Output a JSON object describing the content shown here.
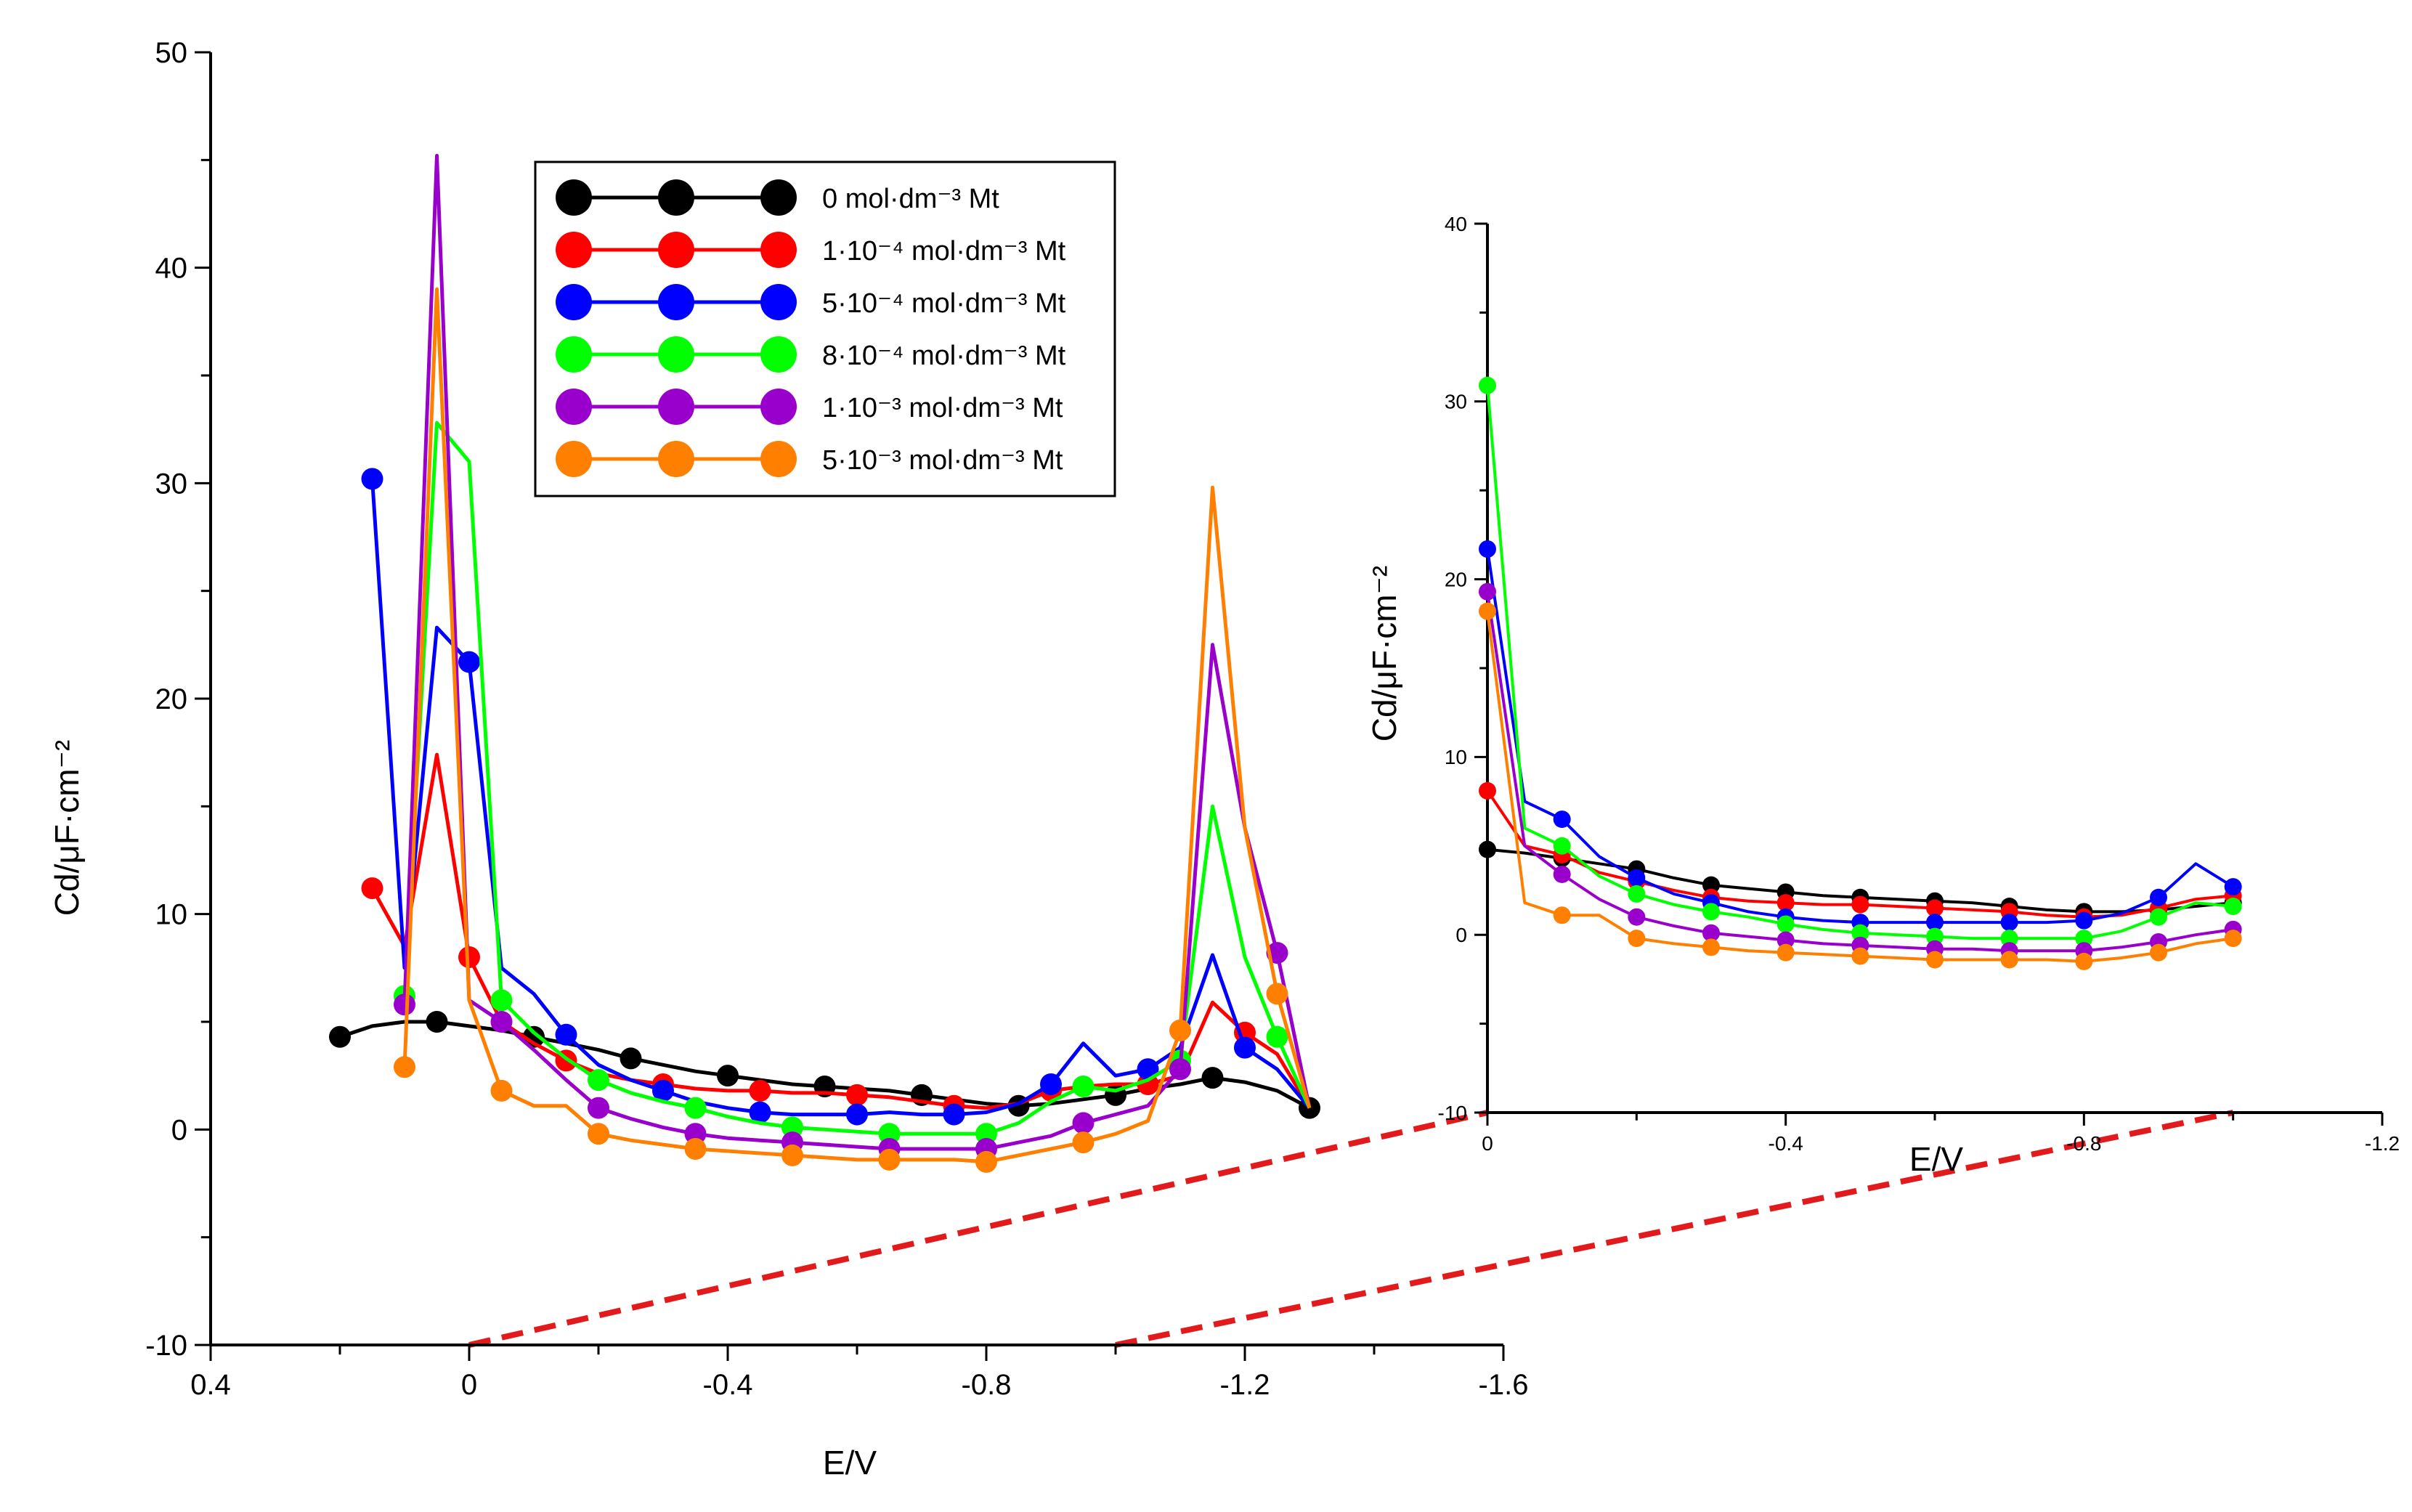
{
  "colors": {
    "0": "#000000",
    "1e-4": "#ff0000",
    "5e-4": "#0000ff",
    "8e-4": "#00ff00",
    "1e-3": "#9900cc",
    "5e-3": "#ff7f00",
    "connector": "#e31a1c"
  },
  "legend": [
    {
      "key": "0",
      "text": "0 mol·dm⁻³ Mt"
    },
    {
      "key": "1e-4",
      "text": "1·10⁻⁴ mol·dm⁻³ Mt"
    },
    {
      "key": "5e-4",
      "text": "5·10⁻⁴ mol·dm⁻³ Mt"
    },
    {
      "key": "8e-4",
      "text": "8·10⁻⁴ mol·dm⁻³ Mt"
    },
    {
      "key": "1e-3",
      "text": "1·10⁻³ mol·dm⁻³ Mt"
    },
    {
      "key": "5e-3",
      "text": "5·10⁻³ mol·dm⁻³ Mt"
    }
  ],
  "chart_data": [
    {
      "type": "line",
      "id": "main",
      "xlabel": "E/V",
      "ylabel": "Cd/μF·cm⁻²",
      "xlim": [
        0.4,
        -1.6
      ],
      "ylim": [
        -10,
        50
      ],
      "xticks": [
        0.4,
        0,
        -0.4,
        -0.8,
        -1.2,
        -1.6
      ],
      "xtick_labels": [
        "0.4",
        "0",
        "-0.4",
        "-0.8",
        "-1.2",
        "-1.6"
      ],
      "yticks": [
        -10,
        0,
        10,
        20,
        30,
        40,
        50
      ],
      "ytick_labels": [
        "-10",
        "0",
        "10",
        "20",
        "30",
        "40",
        "50"
      ],
      "legend_position": "top-center",
      "series": [
        {
          "key": "0",
          "name": "0 mol·dm⁻³ Mt",
          "x": [
            0.2,
            0.15,
            0.1,
            0.05,
            0,
            -0.05,
            -0.1,
            -0.15,
            -0.2,
            -0.25,
            -0.3,
            -0.35,
            -0.4,
            -0.45,
            -0.5,
            -0.55,
            -0.6,
            -0.65,
            -0.7,
            -0.75,
            -0.8,
            -0.85,
            -0.9,
            -0.95,
            -1.0,
            -1.05,
            -1.1,
            -1.15,
            -1.2,
            -1.25,
            -1.3
          ],
          "y": [
            4.3,
            4.8,
            5.0,
            5.0,
            4.8,
            4.6,
            4.3,
            4.0,
            3.7,
            3.3,
            3.0,
            2.7,
            2.5,
            2.3,
            2.1,
            2.0,
            1.9,
            1.8,
            1.6,
            1.4,
            1.2,
            1.1,
            1.2,
            1.4,
            1.6,
            1.9,
            2.1,
            2.4,
            2.2,
            1.8,
            1.0
          ],
          "markers": [
            0.2,
            0.05,
            -0.1,
            -0.25,
            -0.4,
            -0.55,
            -0.7,
            -0.85,
            -1.0,
            -1.15,
            -1.3
          ]
        },
        {
          "key": "1e-4",
          "name": "1·10⁻⁴ mol·dm⁻³ Mt",
          "x": [
            0.15,
            0.1,
            0.05,
            0,
            -0.05,
            -0.1,
            -0.15,
            -0.2,
            -0.25,
            -0.3,
            -0.35,
            -0.4,
            -0.45,
            -0.5,
            -0.55,
            -0.6,
            -0.65,
            -0.7,
            -0.75,
            -0.8,
            -0.85,
            -0.9,
            -0.95,
            -1.0,
            -1.05,
            -1.1,
            -1.15,
            -1.2,
            -1.25,
            -1.3
          ],
          "y": [
            11.2,
            8.5,
            17.4,
            8.0,
            5.0,
            4.0,
            3.2,
            2.6,
            2.3,
            2.1,
            1.9,
            1.8,
            1.8,
            1.7,
            1.7,
            1.6,
            1.5,
            1.3,
            1.1,
            1.0,
            1.2,
            1.8,
            2.0,
            2.1,
            2.1,
            2.5,
            5.9,
            4.5,
            3.5,
            1.0
          ],
          "markers": [
            0.15,
            0.0,
            -0.15,
            -0.3,
            -0.45,
            -0.6,
            -0.75,
            -0.9,
            -1.05,
            -1.2
          ]
        },
        {
          "key": "5e-4",
          "name": "5·10⁻⁴ mol·dm⁻³ Mt",
          "x": [
            0.15,
            0.1,
            0.05,
            0,
            -0.05,
            -0.1,
            -0.15,
            -0.2,
            -0.25,
            -0.3,
            -0.35,
            -0.4,
            -0.45,
            -0.5,
            -0.55,
            -0.6,
            -0.65,
            -0.7,
            -0.75,
            -0.8,
            -0.85,
            -0.9,
            -0.95,
            -1.0,
            -1.05,
            -1.1,
            -1.15,
            -1.2,
            -1.25,
            -1.3
          ],
          "y": [
            30.2,
            7.5,
            23.3,
            21.7,
            7.5,
            6.3,
            4.4,
            3.0,
            2.3,
            1.8,
            1.3,
            1.0,
            0.8,
            0.7,
            0.7,
            0.7,
            0.8,
            0.7,
            0.7,
            0.8,
            1.2,
            2.1,
            4.0,
            2.5,
            2.8,
            3.8,
            8.1,
            3.8,
            2.8,
            1.0
          ],
          "markers": [
            0.15,
            -0.0,
            -0.15,
            -0.3,
            -0.45,
            -0.6,
            -0.75,
            -0.9,
            -1.05,
            -1.2
          ]
        },
        {
          "key": "8e-4",
          "name": "8·10⁻⁴ mol·dm⁻³ Mt",
          "x": [
            0.1,
            0.05,
            0,
            -0.05,
            -0.1,
            -0.15,
            -0.2,
            -0.25,
            -0.3,
            -0.35,
            -0.4,
            -0.45,
            -0.5,
            -0.55,
            -0.6,
            -0.65,
            -0.7,
            -0.75,
            -0.8,
            -0.85,
            -0.9,
            -0.95,
            -1.0,
            -1.05,
            -1.1,
            -1.15,
            -1.2,
            -1.25,
            -1.3
          ],
          "y": [
            6.2,
            32.8,
            31.0,
            6.0,
            4.5,
            3.3,
            2.3,
            1.7,
            1.3,
            1.0,
            0.6,
            0.3,
            0.1,
            0.0,
            -0.1,
            -0.2,
            -0.2,
            -0.2,
            -0.2,
            0.3,
            1.3,
            2.0,
            1.8,
            2.3,
            3.2,
            15.0,
            8.0,
            4.3,
            1.0
          ],
          "markers": [
            0.1,
            -0.05,
            -0.2,
            -0.35,
            -0.5,
            -0.65,
            -0.8,
            -0.95,
            -1.1,
            -1.25
          ]
        },
        {
          "key": "1e-3",
          "name": "1·10⁻³ mol·dm⁻³ Mt",
          "x": [
            0.1,
            0.05,
            0,
            -0.05,
            -0.1,
            -0.15,
            -0.2,
            -0.25,
            -0.3,
            -0.35,
            -0.4,
            -0.45,
            -0.5,
            -0.55,
            -0.6,
            -0.65,
            -0.7,
            -0.75,
            -0.8,
            -0.85,
            -0.9,
            -0.95,
            -1.0,
            -1.05,
            -1.1,
            -1.15,
            -1.2,
            -1.25,
            -1.3
          ],
          "y": [
            5.8,
            45.2,
            6.0,
            5.0,
            3.7,
            2.3,
            1.0,
            0.5,
            0.1,
            -0.2,
            -0.4,
            -0.5,
            -0.6,
            -0.7,
            -0.8,
            -0.9,
            -0.9,
            -0.9,
            -0.9,
            -0.6,
            -0.3,
            0.3,
            0.7,
            1.1,
            2.8,
            22.5,
            14.0,
            8.2,
            1.0
          ],
          "markers": [
            0.1,
            -0.05,
            -0.2,
            -0.35,
            -0.5,
            -0.65,
            -0.8,
            -0.95,
            -1.1,
            -1.25
          ]
        },
        {
          "key": "5e-3",
          "name": "5·10⁻³ mol·dm⁻³ Mt",
          "x": [
            0.1,
            0.05,
            0,
            -0.05,
            -0.1,
            -0.15,
            -0.2,
            -0.25,
            -0.3,
            -0.35,
            -0.4,
            -0.45,
            -0.5,
            -0.55,
            -0.6,
            -0.65,
            -0.7,
            -0.75,
            -0.8,
            -0.85,
            -0.9,
            -0.95,
            -1.0,
            -1.05,
            -1.1,
            -1.15,
            -1.2,
            -1.25,
            -1.3
          ],
          "y": [
            2.9,
            39.0,
            6.0,
            1.8,
            1.1,
            1.1,
            -0.2,
            -0.5,
            -0.7,
            -0.9,
            -1.0,
            -1.1,
            -1.2,
            -1.3,
            -1.4,
            -1.4,
            -1.4,
            -1.4,
            -1.5,
            -1.2,
            -0.9,
            -0.6,
            -0.2,
            0.4,
            4.6,
            29.8,
            14.0,
            6.3,
            1.0
          ],
          "markers": [
            0.1,
            -0.05,
            -0.2,
            -0.35,
            -0.5,
            -0.65,
            -0.8,
            -0.95,
            -1.1,
            -1.25
          ]
        }
      ]
    },
    {
      "type": "line",
      "id": "inset",
      "xlabel": "E/V",
      "ylabel": "Cd/μF·cm⁻²",
      "xlim": [
        0.0,
        -1.2
      ],
      "ylim": [
        -10,
        40
      ],
      "xticks": [
        0,
        -0.4,
        -0.8,
        -1.2
      ],
      "xtick_labels": [
        "0",
        "-0.4",
        "-0.8",
        "-1.2"
      ],
      "yticks": [
        -10,
        0,
        10,
        20,
        30,
        40
      ],
      "ytick_labels": [
        "-10",
        "0",
        "10",
        "20",
        "30",
        "40"
      ],
      "series": [
        {
          "key": "0",
          "name": "0 mol·dm⁻³ Mt",
          "x": [
            0,
            -0.05,
            -0.1,
            -0.15,
            -0.2,
            -0.25,
            -0.3,
            -0.35,
            -0.4,
            -0.45,
            -0.5,
            -0.55,
            -0.6,
            -0.65,
            -0.7,
            -0.75,
            -0.8,
            -0.85,
            -0.9,
            -0.95,
            -1.0
          ],
          "y": [
            4.8,
            4.6,
            4.3,
            4.0,
            3.7,
            3.2,
            2.8,
            2.6,
            2.4,
            2.2,
            2.1,
            2.0,
            1.9,
            1.8,
            1.6,
            1.4,
            1.3,
            1.3,
            1.4,
            1.6,
            1.8
          ],
          "markers": [
            0,
            -0.1,
            -0.2,
            -0.3,
            -0.4,
            -0.5,
            -0.6,
            -0.7,
            -0.8,
            -0.9,
            -1.0
          ]
        },
        {
          "key": "1e-4",
          "name": "1·10⁻⁴ mol·dm⁻³ Mt",
          "x": [
            0,
            -0.05,
            -0.1,
            -0.15,
            -0.2,
            -0.25,
            -0.3,
            -0.35,
            -0.4,
            -0.45,
            -0.5,
            -0.55,
            -0.6,
            -0.65,
            -0.7,
            -0.75,
            -0.8,
            -0.85,
            -0.9,
            -0.95,
            -1.0
          ],
          "y": [
            8.1,
            5.0,
            4.5,
            3.5,
            3.0,
            2.5,
            2.1,
            1.9,
            1.8,
            1.7,
            1.7,
            1.6,
            1.5,
            1.4,
            1.3,
            1.1,
            1.0,
            1.1,
            1.5,
            2.0,
            2.2
          ],
          "markers": [
            0,
            -0.1,
            -0.2,
            -0.3,
            -0.4,
            -0.5,
            -0.6,
            -0.7,
            -0.8,
            -0.9,
            -1.0
          ]
        },
        {
          "key": "5e-4",
          "name": "5·10⁻⁴ mol·dm⁻³ Mt",
          "x": [
            0,
            -0.05,
            -0.1,
            -0.15,
            -0.2,
            -0.25,
            -0.3,
            -0.35,
            -0.4,
            -0.45,
            -0.5,
            -0.55,
            -0.6,
            -0.65,
            -0.7,
            -0.75,
            -0.8,
            -0.85,
            -0.9,
            -0.95,
            -1.0
          ],
          "y": [
            21.7,
            7.5,
            6.5,
            4.4,
            3.2,
            2.3,
            1.8,
            1.3,
            1.0,
            0.8,
            0.7,
            0.7,
            0.7,
            0.7,
            0.7,
            0.7,
            0.8,
            1.2,
            2.1,
            4.0,
            2.7
          ],
          "markers": [
            0,
            -0.1,
            -0.2,
            -0.3,
            -0.4,
            -0.5,
            -0.6,
            -0.7,
            -0.8,
            -0.9,
            -1.0
          ]
        },
        {
          "key": "8e-4",
          "name": "8·10⁻⁴ mol·dm⁻³ Mt",
          "x": [
            0,
            -0.05,
            -0.1,
            -0.15,
            -0.2,
            -0.25,
            -0.3,
            -0.35,
            -0.4,
            -0.45,
            -0.5,
            -0.55,
            -0.6,
            -0.65,
            -0.7,
            -0.75,
            -0.8,
            -0.85,
            -0.9,
            -0.95,
            -1.0
          ],
          "y": [
            30.9,
            6.0,
            5.0,
            3.3,
            2.3,
            1.7,
            1.3,
            1.0,
            0.6,
            0.3,
            0.1,
            0.0,
            -0.1,
            -0.2,
            -0.2,
            -0.2,
            -0.2,
            0.2,
            1.0,
            1.8,
            1.6
          ],
          "markers": [
            0,
            -0.1,
            -0.2,
            -0.3,
            -0.4,
            -0.5,
            -0.6,
            -0.7,
            -0.8,
            -0.9,
            -1.0
          ]
        },
        {
          "key": "1e-3",
          "name": "1·10⁻³ mol·dm⁻³ Mt",
          "x": [
            0,
            -0.05,
            -0.1,
            -0.15,
            -0.2,
            -0.25,
            -0.3,
            -0.35,
            -0.4,
            -0.45,
            -0.5,
            -0.55,
            -0.6,
            -0.65,
            -0.7,
            -0.75,
            -0.8,
            -0.85,
            -0.9,
            -0.95,
            -1.0
          ],
          "y": [
            19.3,
            5.0,
            3.4,
            2.0,
            1.0,
            0.5,
            0.1,
            -0.1,
            -0.3,
            -0.5,
            -0.6,
            -0.7,
            -0.8,
            -0.8,
            -0.9,
            -0.9,
            -0.9,
            -0.7,
            -0.4,
            0.0,
            0.3
          ],
          "markers": [
            0,
            -0.1,
            -0.2,
            -0.3,
            -0.4,
            -0.5,
            -0.6,
            -0.7,
            -0.8,
            -0.9,
            -1.0
          ]
        },
        {
          "key": "5e-3",
          "name": "5·10⁻³ mol·dm⁻³ Mt",
          "x": [
            0,
            -0.05,
            -0.1,
            -0.15,
            -0.2,
            -0.25,
            -0.3,
            -0.35,
            -0.4,
            -0.45,
            -0.5,
            -0.55,
            -0.6,
            -0.65,
            -0.7,
            -0.75,
            -0.8,
            -0.85,
            -0.9,
            -0.95,
            -1.0
          ],
          "y": [
            18.2,
            1.8,
            1.1,
            1.1,
            -0.2,
            -0.5,
            -0.7,
            -0.9,
            -1.0,
            -1.1,
            -1.2,
            -1.3,
            -1.4,
            -1.4,
            -1.4,
            -1.4,
            -1.5,
            -1.3,
            -1.0,
            -0.5,
            -0.2
          ],
          "markers": [
            0,
            -0.1,
            -0.2,
            -0.3,
            -0.4,
            -0.5,
            -0.6,
            -0.7,
            -0.8,
            -0.9,
            -1.0
          ]
        }
      ]
    }
  ]
}
